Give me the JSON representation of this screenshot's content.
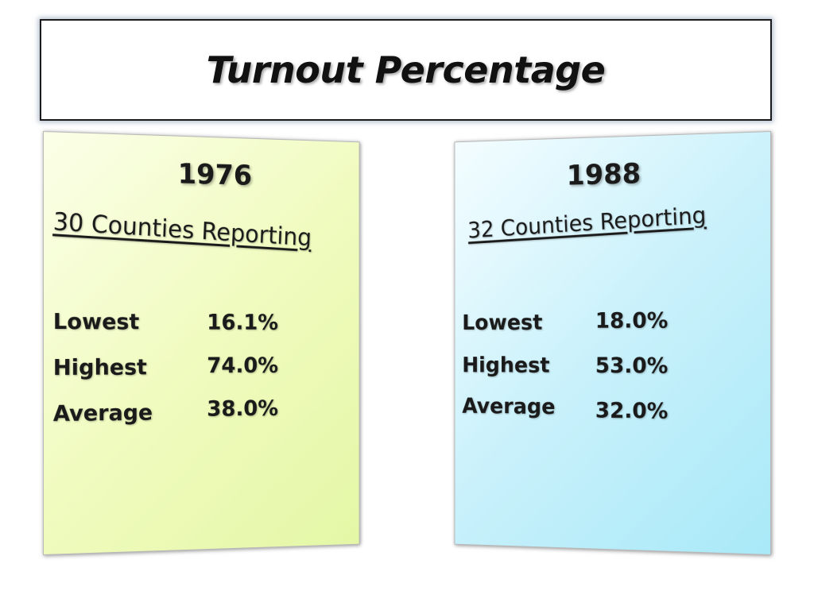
{
  "title": "Turnout Percentage",
  "panels": [
    {
      "year": "1976",
      "reporting": "30 Counties Reporting",
      "stats": [
        {
          "label": "Lowest",
          "value": "16.1%"
        },
        {
          "label": "Highest",
          "value": "74.0%"
        },
        {
          "label": "Average",
          "value": "38.0%"
        }
      ]
    },
    {
      "year": "1988",
      "reporting": "32 Counties Reporting",
      "stats": [
        {
          "label": "Lowest",
          "value": "18.0%"
        },
        {
          "label": "Highest",
          "value": "53.0%"
        },
        {
          "label": "Average",
          "value": "32.0%"
        }
      ]
    }
  ],
  "colors": {
    "left_panel": "#f0fbbf",
    "right_panel": "#c9f1fb",
    "text": "#1a1a1a"
  }
}
